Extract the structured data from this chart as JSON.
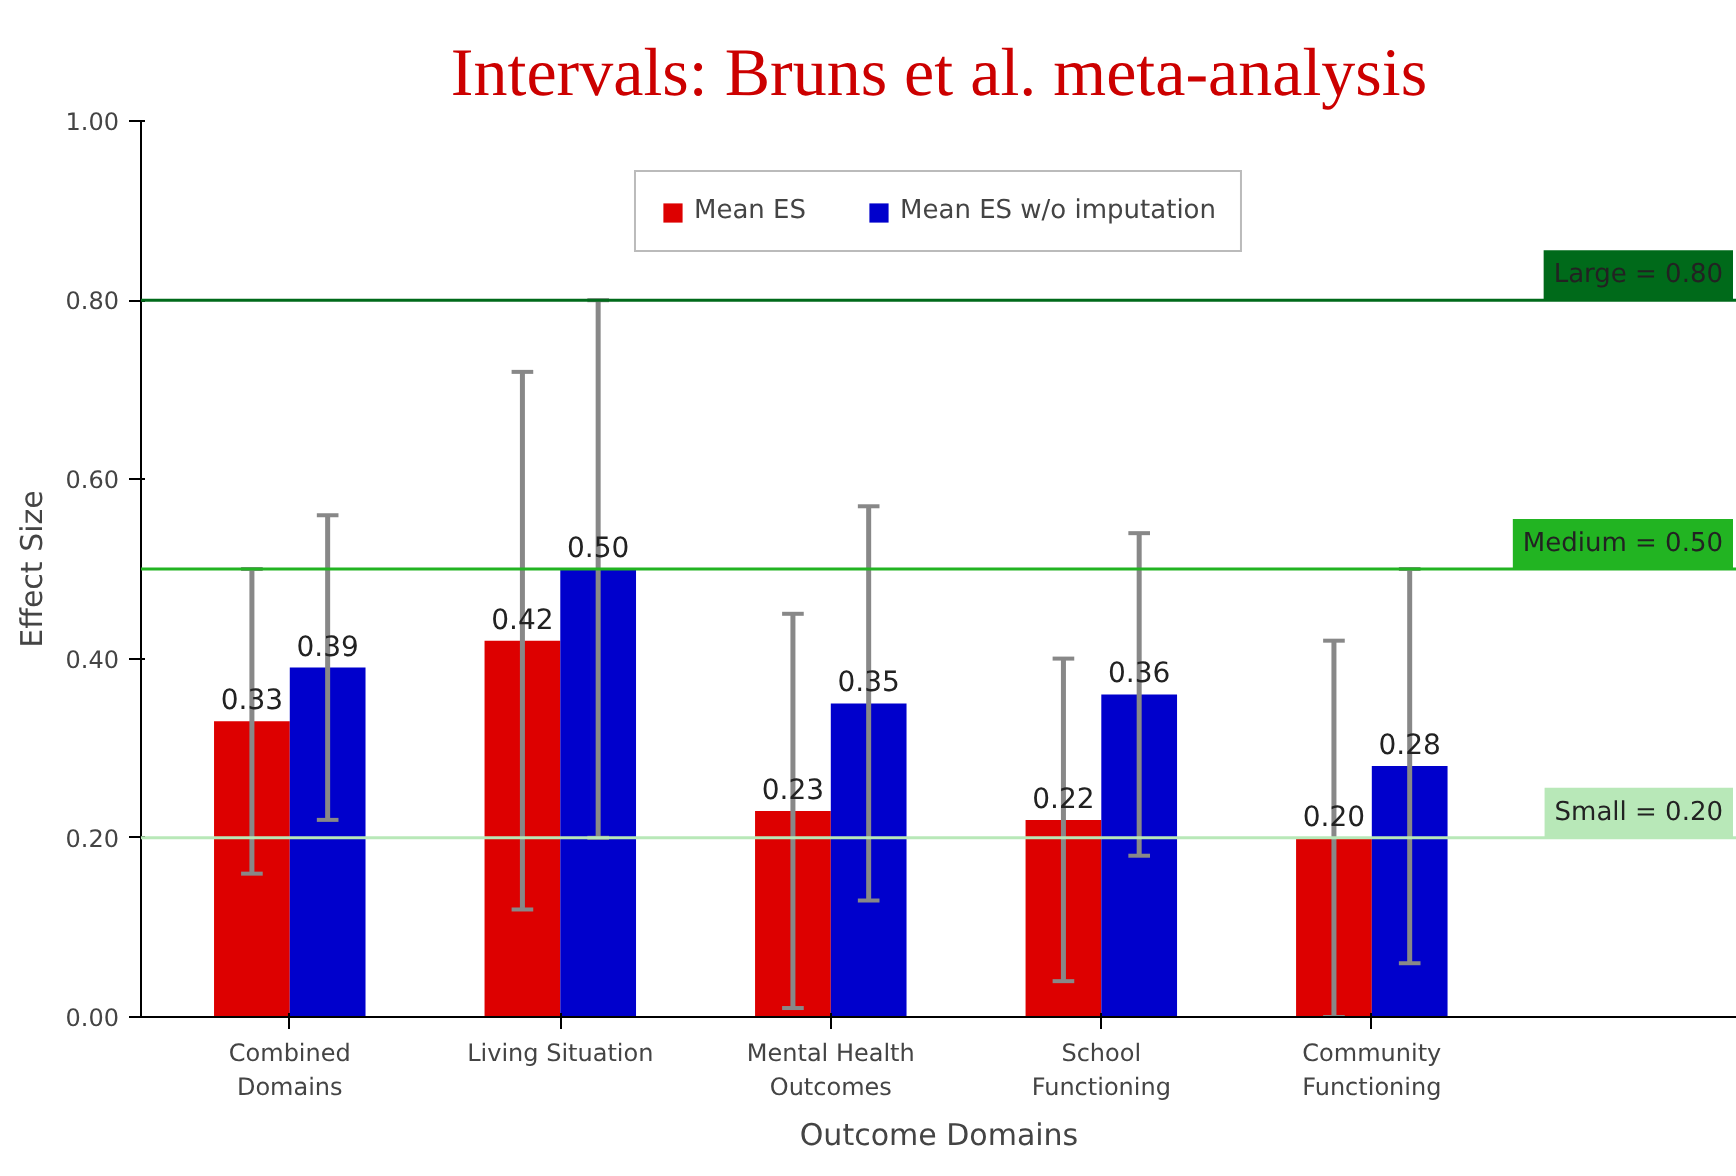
{
  "chart_data": {
    "type": "bar",
    "title": "Intervals: Bruns et al. meta-analysis",
    "xlabel": "Outcome Domains",
    "ylabel": "Effect Size",
    "categories": [
      "Combined\nDomains",
      "Living Situation",
      "Mental Health\nOutcomes",
      "School\nFunctioning",
      "Community\nFunctioning"
    ],
    "series": [
      {
        "name": "Mean ES",
        "color": "#dd0000",
        "values": [
          0.33,
          0.42,
          0.23,
          0.22,
          0.2
        ],
        "value_labels": [
          "0.33",
          "0.42",
          "0.23",
          "0.22",
          "0.20"
        ],
        "errors": [
          [
            0.16,
            0.5
          ],
          [
            0.12,
            0.72
          ],
          [
            0.01,
            0.45
          ],
          [
            0.04,
            0.4
          ],
          [
            0.0,
            0.42
          ]
        ]
      },
      {
        "name": "Mean ES w/o imputation",
        "color": "#0000cc",
        "values": [
          0.39,
          0.5,
          0.35,
          0.36,
          0.28
        ],
        "value_labels": [
          "0.39",
          "0.50",
          "0.35",
          "0.36",
          "0.28"
        ],
        "errors": [
          [
            0.22,
            0.56
          ],
          [
            0.2,
            0.8
          ],
          [
            0.13,
            0.57
          ],
          [
            0.18,
            0.54
          ],
          [
            0.06,
            0.5
          ]
        ]
      }
    ],
    "ylim": [
      0,
      1
    ],
    "yticks": [
      {
        "value": 0,
        "label": "0.00"
      },
      {
        "value": 0.2,
        "label": "0.20"
      },
      {
        "value": 0.4,
        "label": "0.40"
      },
      {
        "value": 0.6,
        "label": "0.60"
      },
      {
        "value": 0.8,
        "label": "0.80"
      },
      {
        "value": 1,
        "label": "1.00"
      }
    ],
    "ref_lines": [
      {
        "axis": "y",
        "value": 0.8,
        "label": "Large = 0.80",
        "color": "#006a1a"
      },
      {
        "axis": "y",
        "value": 0.5,
        "label": "Medium = 0.50",
        "color": "#22b422"
      },
      {
        "axis": "y",
        "value": 0.2,
        "label": "Small = 0.20",
        "color": "#b8e8b8"
      }
    ],
    "grid": false,
    "legend": "top"
  }
}
